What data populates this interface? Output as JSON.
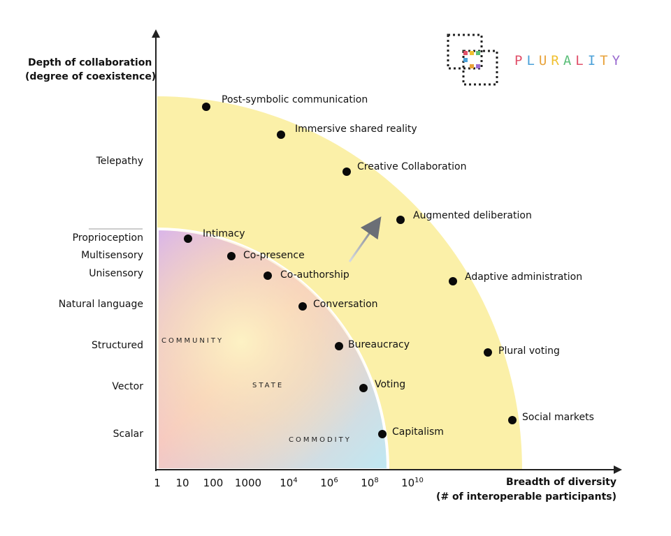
{
  "y_axis": {
    "title_line1": "Depth of collaboration",
    "title_line2": "(degree of coexistence)"
  },
  "x_axis": {
    "title_line1": "Breadth of diversity",
    "title_line2": "(# of interoperable participants)"
  },
  "y_ticks": [
    "Telepathy",
    "Proprioception",
    "Multisensory",
    "Unisensory",
    "Natural language",
    "Structured",
    "Vector",
    "Scalar"
  ],
  "x_ticks": [
    {
      "base": "1",
      "exp": ""
    },
    {
      "base": "10",
      "exp": ""
    },
    {
      "base": "100",
      "exp": ""
    },
    {
      "base": "1000",
      "exp": ""
    },
    {
      "base": "10",
      "exp": "4"
    },
    {
      "base": "10",
      "exp": "6"
    },
    {
      "base": "10",
      "exp": "8"
    },
    {
      "base": "10",
      "exp": "10"
    }
  ],
  "regions": {
    "community": "COMMUNITY",
    "state": "STATE",
    "commodity": "COMMODITY"
  },
  "inner_points": [
    "Intimacy",
    "Co-presence",
    "Co-authorship",
    "Conversation",
    "Bureaucracy",
    "Voting",
    "Capitalism"
  ],
  "outer_points": [
    "Post-symbolic communication",
    "Immersive shared reality",
    "Creative Collaboration",
    "Augmented deliberation",
    "Adaptive administration",
    "Plural voting",
    "Social markets"
  ],
  "logo": {
    "name": "PLURALITY",
    "icon": "plurality-logo-icon"
  },
  "colors": {
    "outer_band": "#fbf0a8",
    "inner_tl": "#d8b6e8",
    "inner_br": "#c6eaf2",
    "inner_center": "#fbe8b6",
    "brand_letters": [
      "#e0506a",
      "#4aa0d8",
      "#e8a23a",
      "#f0c030",
      "#5cbf7a",
      "#e0506a",
      "#4aa0d8",
      "#e8a23a",
      "#9a6bd0"
    ]
  }
}
